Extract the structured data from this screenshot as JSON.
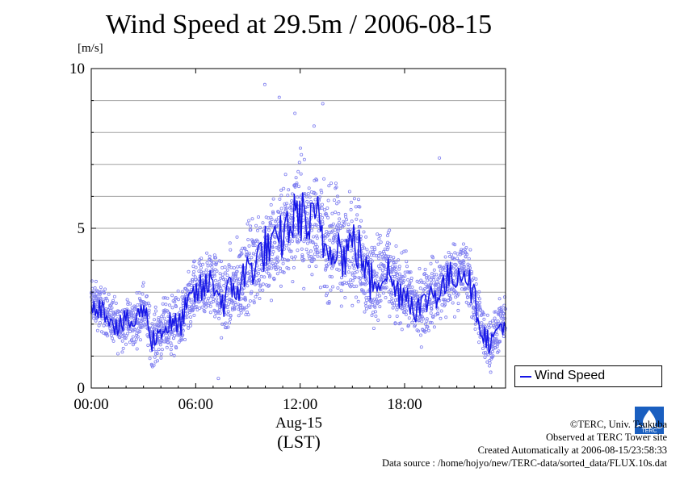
{
  "chart_data": {
    "type": "scatter",
    "title": "Wind Speed at 29.5m / 2006-08-15",
    "ylabel": "[m/s]",
    "ylim": [
      0,
      10
    ],
    "yticks": [
      "0",
      "5",
      "10"
    ],
    "xlim_hours": [
      0,
      23.8
    ],
    "xticks": [
      "00:00",
      "06:00",
      "12:00",
      "18:00"
    ],
    "x_date_label": "Aug-15",
    "x_zone_label": "(LST)",
    "grid": "horizontal every 1 m/s",
    "legend_position": "lower-right outside plot",
    "series": [
      {
        "name": "Wind Speed",
        "color": "#1515e6",
        "point_color": "#8080f0",
        "mean_profile": {
          "hours": [
            0,
            0.5,
            1.0,
            1.5,
            2.0,
            2.5,
            3.0,
            3.5,
            4.0,
            4.5,
            5.0,
            5.5,
            6.0,
            6.5,
            7.0,
            7.5,
            8.0,
            8.5,
            9.0,
            9.5,
            10.0,
            10.5,
            11.0,
            11.5,
            12.0,
            12.5,
            13.0,
            13.5,
            14.0,
            14.5,
            15.0,
            15.5,
            16.0,
            16.5,
            17.0,
            17.5,
            18.0,
            18.5,
            19.0,
            19.5,
            20.0,
            20.5,
            21.0,
            21.5,
            22.0,
            22.5,
            23.0,
            23.5,
            23.8
          ],
          "values": [
            2.7,
            2.5,
            2.3,
            1.9,
            2.1,
            2.0,
            2.6,
            1.5,
            1.8,
            2.0,
            1.9,
            2.5,
            3.0,
            3.1,
            3.4,
            2.7,
            3.0,
            3.2,
            3.7,
            4.0,
            4.4,
            4.3,
            4.8,
            5.2,
            5.5,
            5.0,
            5.3,
            4.3,
            4.7,
            4.1,
            4.6,
            4.2,
            3.3,
            3.5,
            3.7,
            3.0,
            3.1,
            2.6,
            2.5,
            3.0,
            3.0,
            3.4,
            3.6,
            3.7,
            2.8,
            1.7,
            1.4,
            2.0,
            2.0
          ]
        },
        "scatter_spread": {
          "hours": [
            0,
            3,
            6,
            9,
            12,
            15,
            18,
            21,
            23.8
          ],
          "half_range": [
            0.9,
            1.0,
            1.3,
            1.8,
            2.3,
            2.1,
            1.4,
            1.4,
            0.9
          ]
        },
        "extreme_points": [
          {
            "x": 9.97,
            "y": 9.5
          },
          {
            "x": 10.8,
            "y": 9.1
          },
          {
            "x": 11.7,
            "y": 8.6
          },
          {
            "x": 13.3,
            "y": 8.9
          },
          {
            "x": 12.8,
            "y": 8.2
          },
          {
            "x": 20.0,
            "y": 7.2
          },
          {
            "x": 7.3,
            "y": 0.3
          }
        ]
      }
    ]
  },
  "legend": {
    "label": "Wind Speed"
  },
  "footer": {
    "line1": "©TERC, Univ. Tsukuba",
    "line2": "Observed at TERC Tower site",
    "line3": "Created Automatically at 2006-08-15/23:58:33",
    "line4": "Data source : /home/hojyo/new/TERC-data/sorted_data/FLUX.10s.dat"
  },
  "logo": {
    "text": "TERC"
  }
}
